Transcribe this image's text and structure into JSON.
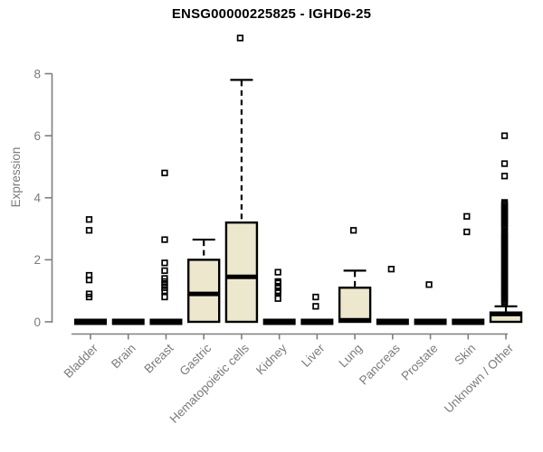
{
  "chart_data": {
    "type": "boxplot",
    "title": "ENSG00000225825 - IGHD6-25",
    "ylabel": "Expression",
    "xlabel": "",
    "ylim": [
      0,
      9.4
    ],
    "yticks": [
      0,
      2,
      4,
      6,
      8
    ],
    "grid": false,
    "legend": false,
    "categories": [
      "Bladder",
      "Brain",
      "Breast",
      "Gastric",
      "Hematopoietic cells",
      "Kidney",
      "Liver",
      "Lung",
      "Pancreas",
      "Prostate",
      "Skin",
      "Unknown / Other"
    ],
    "boxes": [
      {
        "category": "Bladder",
        "q1": 0,
        "median": 0,
        "q3": 0,
        "whisker_low": 0,
        "whisker_high": 0,
        "outliers": [
          3.3,
          2.95,
          1.5,
          1.35,
          0.9,
          0.8
        ]
      },
      {
        "category": "Brain",
        "q1": 0,
        "median": 0,
        "q3": 0,
        "whisker_low": 0,
        "whisker_high": 0,
        "outliers": []
      },
      {
        "category": "Breast",
        "q1": 0,
        "median": 0,
        "q3": 0,
        "whisker_low": 0,
        "whisker_high": 0,
        "outliers": [
          4.8,
          2.65,
          1.9,
          1.65,
          1.4,
          1.3,
          1.2,
          1.1,
          1.0,
          0.8
        ]
      },
      {
        "category": "Gastric",
        "q1": 0,
        "median": 0.9,
        "q3": 2.0,
        "whisker_low": 0,
        "whisker_high": 2.65,
        "outliers": []
      },
      {
        "category": "Hematopoietic cells",
        "q1": 0,
        "median": 1.45,
        "q3": 3.2,
        "whisker_low": 0,
        "whisker_high": 7.8,
        "outliers": [
          9.15
        ]
      },
      {
        "category": "Kidney",
        "q1": 0,
        "median": 0,
        "q3": 0,
        "whisker_low": 0,
        "whisker_high": 0,
        "outliers": [
          1.6,
          1.3,
          1.25,
          1.15,
          1.1,
          1.0,
          0.95,
          0.75
        ]
      },
      {
        "category": "Liver",
        "q1": 0,
        "median": 0,
        "q3": 0,
        "whisker_low": 0,
        "whisker_high": 0,
        "outliers": [
          0.8,
          0.5
        ]
      },
      {
        "category": "Lung",
        "q1": 0,
        "median": 0.05,
        "q3": 1.1,
        "whisker_low": 0,
        "whisker_high": 1.65,
        "outliers": [
          2.95
        ]
      },
      {
        "category": "Pancreas",
        "q1": 0,
        "median": 0,
        "q3": 0,
        "whisker_low": 0,
        "whisker_high": 0,
        "outliers": [
          1.7
        ]
      },
      {
        "category": "Prostate",
        "q1": 0,
        "median": 0,
        "q3": 0,
        "whisker_low": 0,
        "whisker_high": 0,
        "outliers": [
          1.2
        ]
      },
      {
        "category": "Skin",
        "q1": 0,
        "median": 0,
        "q3": 0,
        "whisker_low": 0,
        "whisker_high": 0,
        "outliers": [
          3.4,
          2.9
        ]
      },
      {
        "category": "Unknown / Other",
        "q1": 0,
        "median": 0.25,
        "q3": 0.3,
        "whisker_low": 0,
        "whisker_high": 0.5,
        "outliers": [
          6.0,
          5.1,
          4.7,
          3.85,
          3.8,
          3.75,
          3.7,
          3.65,
          3.6,
          3.55,
          3.5,
          3.45,
          3.4,
          3.35,
          3.3,
          3.25,
          3.2,
          3.15,
          3.1,
          3.05,
          3.0,
          2.9,
          2.85,
          2.8,
          2.75,
          2.7,
          2.65,
          2.6,
          2.55,
          2.5,
          2.45,
          2.4,
          2.35,
          2.3,
          2.25,
          2.2,
          2.15,
          2.1,
          2.05,
          2.0,
          1.95,
          1.9,
          1.85,
          1.8,
          1.75,
          1.7,
          1.65,
          1.6,
          1.55,
          1.5,
          1.45,
          1.4,
          1.35,
          1.3,
          1.25,
          1.2,
          1.15,
          1.1,
          1.05,
          1.0,
          0.95,
          0.9,
          0.85,
          0.8,
          0.75,
          0.7,
          0.65,
          0.6
        ]
      }
    ],
    "colors": {
      "box_fill": "#ede8cd",
      "box_stroke": "#000000",
      "median": "#000000",
      "outlier_stroke": "#000000",
      "axis": "#7f7f7f",
      "tick_text": "#7b7b7b",
      "title_text": "#000000",
      "background": "#ffffff"
    }
  }
}
